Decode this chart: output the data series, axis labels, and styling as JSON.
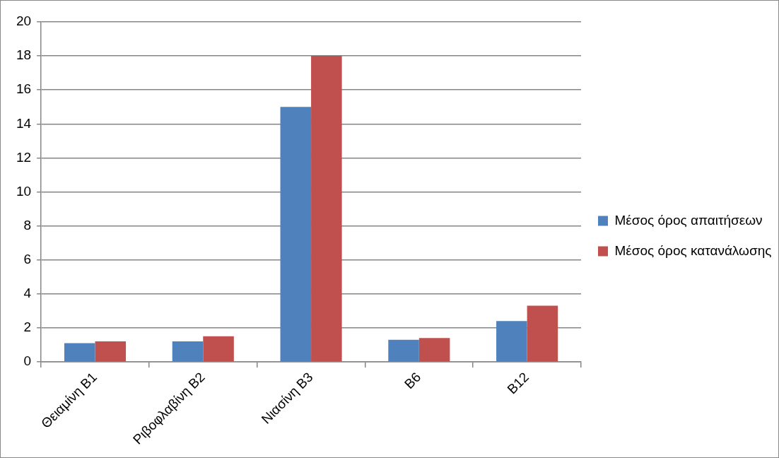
{
  "chart_data": {
    "type": "bar",
    "categories": [
      "Θειαμίνη Β1",
      "Ριβοφλαβίνη Β2",
      "Νιασίνη Β3",
      "Β6",
      "Β12"
    ],
    "series": [
      {
        "name": "Μέσος όρος απαιτήσεων",
        "color": "#4f81bd",
        "values": [
          1.1,
          1.2,
          15,
          1.3,
          2.4
        ]
      },
      {
        "name": "Μέσος όρος κατανάλωσης",
        "color": "#c0504d",
        "values": [
          1.2,
          1.5,
          18,
          1.4,
          3.3
        ]
      }
    ],
    "ylim": [
      0,
      20
    ],
    "yticks": [
      0,
      2,
      4,
      6,
      8,
      10,
      12,
      14,
      16,
      18,
      20
    ],
    "grid": "y",
    "legend": "right"
  }
}
